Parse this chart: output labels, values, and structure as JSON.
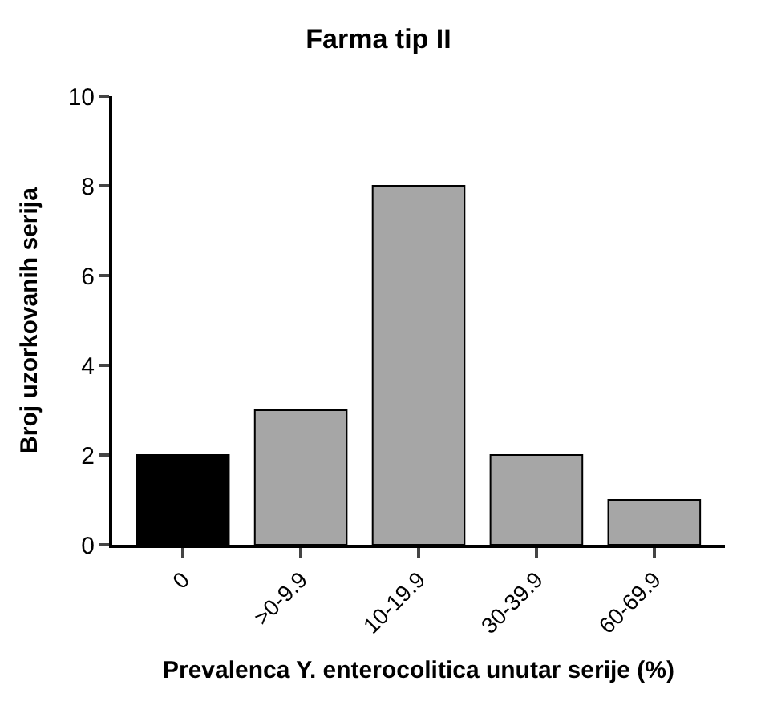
{
  "chart_data": {
    "type": "bar",
    "title": "Farma tip II",
    "xlabel": "Prevalenca Y. enterocolitica unutar serije (%)",
    "ylabel": "Broj uzorkovanih serija",
    "categories": [
      "0",
      ">0-9.9",
      "10-19.9",
      "30-39.9",
      "60-69.9"
    ],
    "values": [
      2,
      3,
      8,
      2,
      1
    ],
    "colors": [
      "#000000",
      "#a6a6a6",
      "#a6a6a6",
      "#a6a6a6",
      "#a6a6a6"
    ],
    "ylim": [
      0,
      10
    ],
    "yticks": [
      0,
      2,
      4,
      6,
      8,
      10
    ]
  }
}
